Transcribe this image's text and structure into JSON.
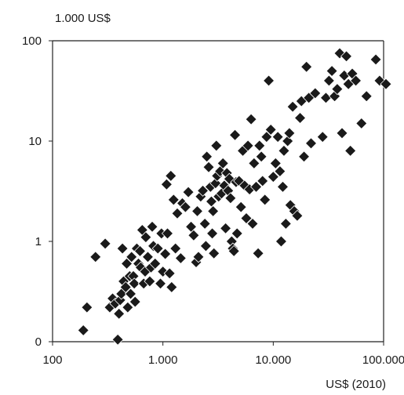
{
  "chart_data": {
    "type": "scatter",
    "title": "",
    "ylabel": "1.000 US$",
    "xlabel": "US$ (2010)",
    "x_scale": "log",
    "y_scale": "log",
    "xlim": [
      100,
      100000
    ],
    "ylim": [
      0.1,
      100
    ],
    "x_ticks": [
      {
        "value": 100,
        "label": "100"
      },
      {
        "value": 1000,
        "label": "1.000"
      },
      {
        "value": 10000,
        "label": "10.000"
      },
      {
        "value": 100000,
        "label": "100.000"
      }
    ],
    "y_ticks": [
      {
        "value": 0.1,
        "label": "0"
      },
      {
        "value": 1,
        "label": "1"
      },
      {
        "value": 10,
        "label": "10"
      },
      {
        "value": 100,
        "label": "100"
      }
    ],
    "grid": false,
    "legend": "none",
    "marker": "diamond",
    "marker_color": "#1a1a1a",
    "series": [
      {
        "points": [
          [
            190,
            0.13
          ],
          [
            205,
            0.22
          ],
          [
            245,
            0.7
          ],
          [
            300,
            0.95
          ],
          [
            330,
            0.22
          ],
          [
            350,
            0.27
          ],
          [
            370,
            0.24
          ],
          [
            390,
            0.105
          ],
          [
            400,
            0.19
          ],
          [
            410,
            0.26
          ],
          [
            420,
            0.3
          ],
          [
            430,
            0.85
          ],
          [
            440,
            0.4
          ],
          [
            460,
            0.35
          ],
          [
            470,
            0.6
          ],
          [
            480,
            0.22
          ],
          [
            500,
            0.45
          ],
          [
            510,
            0.3
          ],
          [
            520,
            0.7
          ],
          [
            540,
            0.45
          ],
          [
            550,
            0.38
          ],
          [
            560,
            0.25
          ],
          [
            580,
            0.85
          ],
          [
            600,
            0.6
          ],
          [
            620,
            0.8
          ],
          [
            630,
            0.55
          ],
          [
            650,
            1.3
          ],
          [
            670,
            0.38
          ],
          [
            690,
            0.5
          ],
          [
            700,
            1.1
          ],
          [
            730,
            0.7
          ],
          [
            760,
            0.4
          ],
          [
            780,
            0.55
          ],
          [
            800,
            1.4
          ],
          [
            820,
            0.9
          ],
          [
            850,
            0.6
          ],
          [
            900,
            0.85
          ],
          [
            950,
            0.38
          ],
          [
            970,
            1.2
          ],
          [
            1000,
            0.5
          ],
          [
            1050,
            0.75
          ],
          [
            1080,
            3.7
          ],
          [
            1100,
            1.2
          ],
          [
            1150,
            0.48
          ],
          [
            1180,
            4.5
          ],
          [
            1200,
            0.35
          ],
          [
            1250,
            2.6
          ],
          [
            1300,
            0.85
          ],
          [
            1350,
            1.9
          ],
          [
            1450,
            0.68
          ],
          [
            1500,
            2.4
          ],
          [
            1600,
            2.2
          ],
          [
            1700,
            3.1
          ],
          [
            1800,
            1.4
          ],
          [
            1900,
            1.15
          ],
          [
            2000,
            0.62
          ],
          [
            2050,
            2.0
          ],
          [
            2100,
            0.7
          ],
          [
            2200,
            2.8
          ],
          [
            2300,
            3.2
          ],
          [
            2400,
            1.5
          ],
          [
            2450,
            0.9
          ],
          [
            2500,
            7.0
          ],
          [
            2600,
            5.5
          ],
          [
            2700,
            3.5
          ],
          [
            2750,
            2.5
          ],
          [
            2800,
            1.2
          ],
          [
            2850,
            2.0
          ],
          [
            2900,
            0.76
          ],
          [
            3000,
            3.8
          ],
          [
            3050,
            9.0
          ],
          [
            3100,
            4.5
          ],
          [
            3200,
            2.8
          ],
          [
            3300,
            5.0
          ],
          [
            3400,
            3.0
          ],
          [
            3500,
            6.0
          ],
          [
            3600,
            3.6
          ],
          [
            3700,
            1.35
          ],
          [
            3800,
            4.8
          ],
          [
            3900,
            3.2
          ],
          [
            4000,
            4.2
          ],
          [
            4100,
            2.7
          ],
          [
            4200,
            1.0
          ],
          [
            4300,
            0.85
          ],
          [
            4400,
            0.8
          ],
          [
            4500,
            11.5
          ],
          [
            4600,
            3.9
          ],
          [
            4700,
            1.2
          ],
          [
            4900,
            4.0
          ],
          [
            5100,
            2.2
          ],
          [
            5300,
            8.0
          ],
          [
            5500,
            3.6
          ],
          [
            5700,
            1.7
          ],
          [
            5900,
            9.0
          ],
          [
            6100,
            3.3
          ],
          [
            6300,
            16.5
          ],
          [
            6500,
            1.5
          ],
          [
            6700,
            6.0
          ],
          [
            7000,
            3.5
          ],
          [
            7300,
            0.76
          ],
          [
            7500,
            9.0
          ],
          [
            7800,
            7.0
          ],
          [
            8000,
            4.0
          ],
          [
            8400,
            2.6
          ],
          [
            8700,
            11.0
          ],
          [
            9100,
            40.0
          ],
          [
            9500,
            13.0
          ],
          [
            10000,
            4.4
          ],
          [
            10500,
            6.0
          ],
          [
            11000,
            11.0
          ],
          [
            11500,
            5.0
          ],
          [
            11800,
            1.0
          ],
          [
            12200,
            3.5
          ],
          [
            12500,
            8.0
          ],
          [
            13000,
            1.5
          ],
          [
            13500,
            10.0
          ],
          [
            14000,
            12.0
          ],
          [
            14300,
            2.3
          ],
          [
            15000,
            22.0
          ],
          [
            15500,
            2.0
          ],
          [
            16500,
            1.8
          ],
          [
            17500,
            17.0
          ],
          [
            18000,
            25.0
          ],
          [
            19000,
            7.0
          ],
          [
            20000,
            55.0
          ],
          [
            21000,
            27.0
          ],
          [
            22000,
            9.5
          ],
          [
            24000,
            30.0
          ],
          [
            28000,
            11.0
          ],
          [
            30000,
            27.0
          ],
          [
            32000,
            40.0
          ],
          [
            34000,
            50.0
          ],
          [
            36000,
            28.0
          ],
          [
            38000,
            33.0
          ],
          [
            40000,
            75.0
          ],
          [
            42000,
            12.0
          ],
          [
            44000,
            45.0
          ],
          [
            46000,
            70.0
          ],
          [
            48000,
            37.0
          ],
          [
            50000,
            8.0
          ],
          [
            52000,
            47.0
          ],
          [
            56000,
            40.0
          ],
          [
            63000,
            15.0
          ],
          [
            70000,
            28.0
          ],
          [
            85000,
            65.0
          ],
          [
            92000,
            40.0
          ],
          [
            105000,
            37.0
          ]
        ]
      }
    ]
  }
}
